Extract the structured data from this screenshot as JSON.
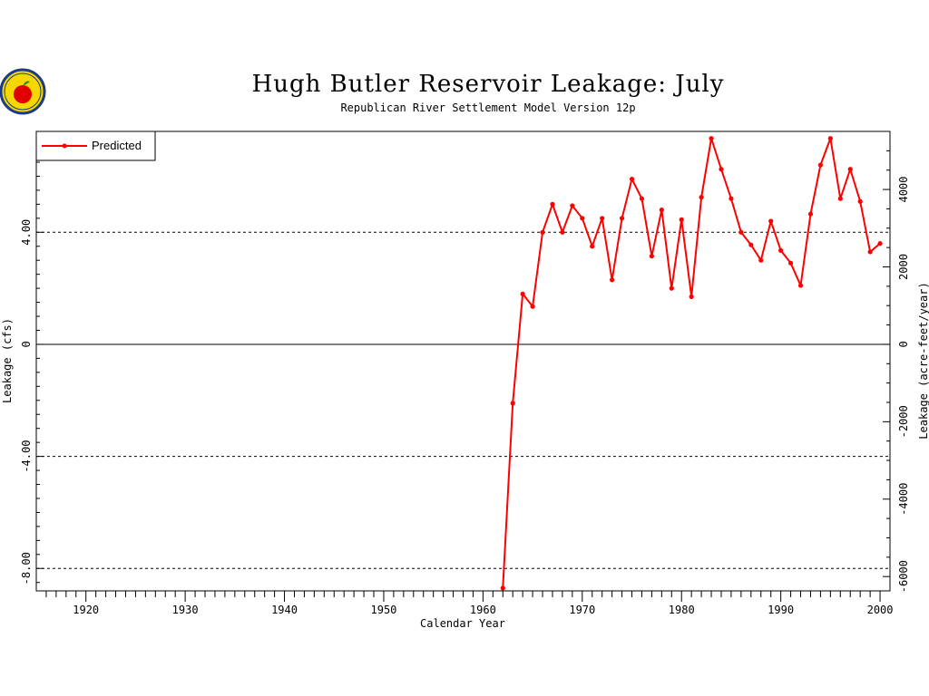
{
  "chart_data": {
    "type": "line",
    "title": "Hugh Butler Reservoir Leakage: July",
    "subtitle": "Republican River Settlement Model Version 12p",
    "xlabel": "Calendar Year",
    "ylabel": "Leakage (cfs)",
    "y2label": "Leakage (acre-feet/year)",
    "xlim": [
      1915,
      2001
    ],
    "ylim": [
      -8.8,
      7.6
    ],
    "y2lim": [
      -6370,
      5500
    ],
    "x_ticks": [
      1920,
      1930,
      1940,
      1950,
      1960,
      1970,
      1980,
      1990,
      2000
    ],
    "x_tick_labels": [
      "1920",
      "1930",
      "1940",
      "1950",
      "1960",
      "1970",
      "1980",
      "1990",
      "2000"
    ],
    "y_ticks": [
      -8,
      -4,
      0,
      4
    ],
    "y_tick_labels": [
      "-8.00",
      "-4.00",
      "0",
      "4.00"
    ],
    "y2_ticks": [
      -6000,
      -4000,
      -2000,
      0,
      2000,
      4000
    ],
    "y2_tick_labels": [
      "-6000",
      "-4000",
      "-2000",
      "0",
      "2000",
      "4000"
    ],
    "grid": "dashed horizontal at y tick values",
    "legend_position": "top-left",
    "colors": {
      "predicted": "#ff0000"
    },
    "series": [
      {
        "name": "Predicted",
        "x": [
          1962,
          1963,
          1964,
          1965,
          1966,
          1967,
          1968,
          1969,
          1970,
          1971,
          1972,
          1973,
          1974,
          1975,
          1976,
          1977,
          1978,
          1979,
          1980,
          1981,
          1982,
          1983,
          1984,
          1985,
          1986,
          1987,
          1988,
          1989,
          1990,
          1991,
          1992,
          1993,
          1994,
          1995,
          1996,
          1997,
          1998,
          1999,
          2000
        ],
        "y": [
          -8.7,
          -2.1,
          1.8,
          1.35,
          4.0,
          5.0,
          4.0,
          4.95,
          4.5,
          3.5,
          4.5,
          2.3,
          4.5,
          5.9,
          5.2,
          3.15,
          4.8,
          2.0,
          4.45,
          1.7,
          5.25,
          7.35,
          6.25,
          5.2,
          4.0,
          3.55,
          3.0,
          4.4,
          3.35,
          2.9,
          2.1,
          4.65,
          6.4,
          7.35,
          5.2,
          6.25,
          5.1,
          3.3,
          3.6
        ]
      }
    ]
  }
}
